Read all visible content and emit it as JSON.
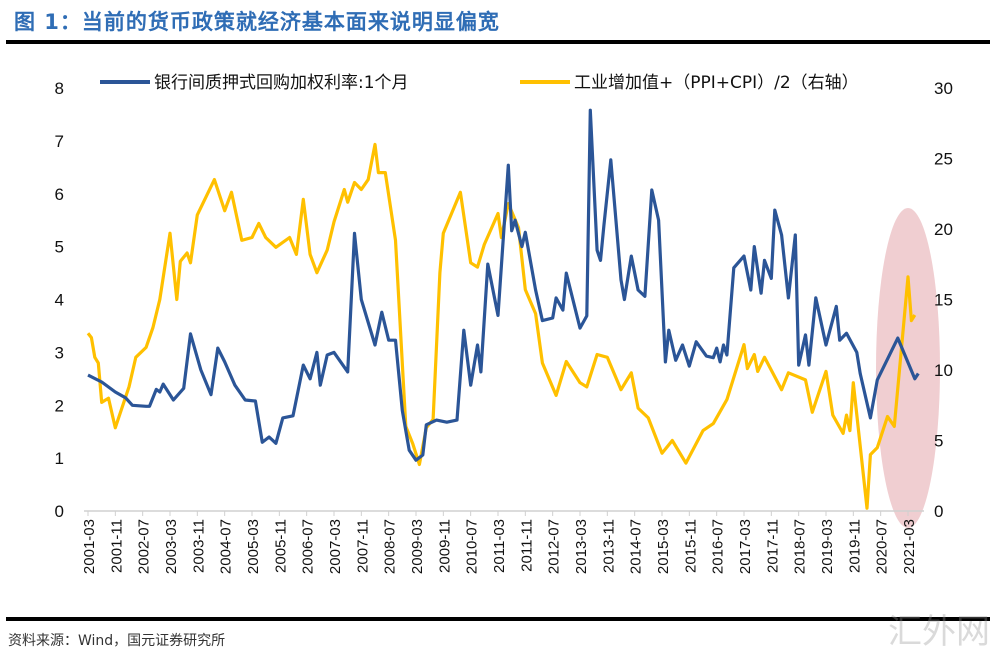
{
  "title": "图 1：当前的货币政策就经济基本面来说明显偏宽",
  "source": "资料来源：Wind，国元证券研究所",
  "watermark": "汇外网",
  "chart_data": {
    "type": "line",
    "title": "",
    "xlabel": "",
    "ylabel_left": "",
    "ylabel_right": "",
    "grid": false,
    "legend_position": "top",
    "y_left": {
      "range": [
        0,
        8
      ],
      "ticks": [
        "0",
        "1",
        "2",
        "3",
        "4",
        "5",
        "6",
        "7",
        "8"
      ]
    },
    "y_right": {
      "range": [
        0,
        30
      ],
      "ticks": [
        "0",
        "5",
        "10",
        "15",
        "20",
        "25",
        "30"
      ]
    },
    "x_ticks": [
      "2001-03",
      "2001-11",
      "2002-07",
      "2003-03",
      "2003-11",
      "2004-07",
      "2005-03",
      "2005-11",
      "2006-07",
      "2007-03",
      "2007-11",
      "2008-07",
      "2009-03",
      "2009-11",
      "2010-07",
      "2011-03",
      "2011-11",
      "2012-07",
      "2013-03",
      "2013-11",
      "2014-07",
      "2015-03",
      "2015-11",
      "2016-07",
      "2017-03",
      "2017-11",
      "2018-07",
      "2019-03",
      "2019-11",
      "2020-07",
      "2021-03"
    ],
    "highlight": {
      "shape": "ellipse",
      "color": "#e8b4b8",
      "around": "2020-07 to 2021-05"
    },
    "series": [
      {
        "name": "银行间质押式回购加权利率:1个月",
        "axis": "left",
        "color": "#2b5597",
        "points": [
          [
            "2001-03",
            2.57
          ],
          [
            "2001-07",
            2.44
          ],
          [
            "2001-11",
            2.25
          ],
          [
            "2002-02",
            2.14
          ],
          [
            "2002-04",
            2.0
          ],
          [
            "2002-08",
            1.98
          ],
          [
            "2002-09",
            1.98
          ],
          [
            "2002-11",
            2.3
          ],
          [
            "2002-12",
            2.25
          ],
          [
            "2003-01",
            2.4
          ],
          [
            "2003-04",
            2.1
          ],
          [
            "2003-07",
            2.32
          ],
          [
            "2003-09",
            3.35
          ],
          [
            "2003-12",
            2.67
          ],
          [
            "2004-03",
            2.2
          ],
          [
            "2004-05",
            3.08
          ],
          [
            "2004-07",
            2.82
          ],
          [
            "2004-10",
            2.38
          ],
          [
            "2005-01",
            2.1
          ],
          [
            "2005-04",
            2.08
          ],
          [
            "2005-06",
            1.3
          ],
          [
            "2005-08",
            1.4
          ],
          [
            "2005-10",
            1.28
          ],
          [
            "2005-12",
            1.76
          ],
          [
            "2006-03",
            1.8
          ],
          [
            "2006-06",
            2.76
          ],
          [
            "2006-08",
            2.5
          ],
          [
            "2006-10",
            3.0
          ],
          [
            "2006-11",
            2.38
          ],
          [
            "2007-01",
            2.95
          ],
          [
            "2007-03",
            3.0
          ],
          [
            "2007-07",
            2.63
          ],
          [
            "2007-09",
            5.25
          ],
          [
            "2007-11",
            4.0
          ],
          [
            "2008-03",
            3.14
          ],
          [
            "2008-05",
            3.76
          ],
          [
            "2008-07",
            3.23
          ],
          [
            "2008-09",
            3.23
          ],
          [
            "2008-11",
            1.9
          ],
          [
            "2009-01",
            1.15
          ],
          [
            "2009-03",
            0.96
          ],
          [
            "2009-05",
            1.06
          ],
          [
            "2009-06",
            1.63
          ],
          [
            "2009-09",
            1.72
          ],
          [
            "2009-12",
            1.68
          ],
          [
            "2010-03",
            1.72
          ],
          [
            "2010-05",
            3.42
          ],
          [
            "2010-07",
            2.38
          ],
          [
            "2010-09",
            3.14
          ],
          [
            "2010-10",
            2.63
          ],
          [
            "2010-12",
            4.67
          ],
          [
            "2011-03",
            3.7
          ],
          [
            "2011-06",
            6.54
          ],
          [
            "2011-07",
            5.3
          ],
          [
            "2011-08",
            5.5
          ],
          [
            "2011-10",
            5.0
          ],
          [
            "2011-11",
            5.27
          ],
          [
            "2012-02",
            4.18
          ],
          [
            "2012-04",
            3.6
          ],
          [
            "2012-07",
            3.65
          ],
          [
            "2012-08",
            4.03
          ],
          [
            "2012-10",
            3.8
          ],
          [
            "2012-11",
            4.5
          ],
          [
            "2013-03",
            3.46
          ],
          [
            "2013-05",
            3.69
          ],
          [
            "2013-06",
            7.58
          ],
          [
            "2013-08",
            4.93
          ],
          [
            "2013-09",
            4.74
          ],
          [
            "2013-10",
            5.4
          ],
          [
            "2013-12",
            6.64
          ],
          [
            "2014-03",
            4.37
          ],
          [
            "2014-04",
            4.0
          ],
          [
            "2014-06",
            4.82
          ],
          [
            "2014-08",
            4.18
          ],
          [
            "2014-10",
            4.06
          ],
          [
            "2014-12",
            6.07
          ],
          [
            "2015-02",
            5.5
          ],
          [
            "2015-04",
            2.82
          ],
          [
            "2015-05",
            3.42
          ],
          [
            "2015-07",
            2.85
          ],
          [
            "2015-09",
            3.14
          ],
          [
            "2015-11",
            2.74
          ],
          [
            "2016-01",
            3.2
          ],
          [
            "2016-04",
            2.93
          ],
          [
            "2016-06",
            2.9
          ],
          [
            "2016-07",
            3.08
          ],
          [
            "2016-08",
            2.82
          ],
          [
            "2016-09",
            3.14
          ],
          [
            "2016-10",
            2.95
          ],
          [
            "2016-12",
            4.6
          ],
          [
            "2017-03",
            4.82
          ],
          [
            "2017-05",
            4.18
          ],
          [
            "2017-06",
            5.0
          ],
          [
            "2017-08",
            4.12
          ],
          [
            "2017-09",
            4.74
          ],
          [
            "2017-11",
            4.4
          ],
          [
            "2017-12",
            5.69
          ],
          [
            "2018-02",
            5.22
          ],
          [
            "2018-04",
            4.03
          ],
          [
            "2018-06",
            5.22
          ],
          [
            "2018-07",
            2.76
          ],
          [
            "2018-09",
            3.33
          ],
          [
            "2018-10",
            2.76
          ],
          [
            "2018-12",
            4.03
          ],
          [
            "2019-03",
            3.14
          ],
          [
            "2019-06",
            3.87
          ],
          [
            "2019-07",
            3.23
          ],
          [
            "2019-09",
            3.36
          ],
          [
            "2019-12",
            3.0
          ],
          [
            "2020-01",
            2.6
          ],
          [
            "2020-04",
            1.76
          ],
          [
            "2020-06",
            2.48
          ],
          [
            "2020-12",
            3.27
          ],
          [
            "2021-05",
            2.5
          ],
          [
            "2021-06",
            2.6
          ]
        ]
      },
      {
        "name": "工业增加值+（PPI+CPI）/2（右轴）",
        "axis": "right",
        "color": "#ffc000",
        "points": [
          [
            "2001-03",
            12.6
          ],
          [
            "2001-04",
            12.3
          ],
          [
            "2001-05",
            10.9
          ],
          [
            "2001-06",
            10.5
          ],
          [
            "2001-07",
            7.7
          ],
          [
            "2001-09",
            8.0
          ],
          [
            "2001-11",
            5.9
          ],
          [
            "2002-03",
            8.8
          ],
          [
            "2002-05",
            10.9
          ],
          [
            "2002-08",
            11.6
          ],
          [
            "2002-10",
            13.0
          ],
          [
            "2002-12",
            15.0
          ],
          [
            "2003-03",
            19.7
          ],
          [
            "2003-05",
            15.0
          ],
          [
            "2003-06",
            17.7
          ],
          [
            "2003-08",
            18.3
          ],
          [
            "2003-09",
            17.6
          ],
          [
            "2003-11",
            21.0
          ],
          [
            "2004-04",
            23.5
          ],
          [
            "2004-07",
            21.3
          ],
          [
            "2004-09",
            22.6
          ],
          [
            "2004-12",
            19.2
          ],
          [
            "2005-03",
            19.4
          ],
          [
            "2005-05",
            20.4
          ],
          [
            "2005-07",
            19.4
          ],
          [
            "2005-10",
            18.7
          ],
          [
            "2006-02",
            19.4
          ],
          [
            "2006-04",
            18.2
          ],
          [
            "2006-06",
            22.1
          ],
          [
            "2006-08",
            18.2
          ],
          [
            "2006-10",
            16.9
          ],
          [
            "2007-01",
            18.5
          ],
          [
            "2007-03",
            20.5
          ],
          [
            "2007-06",
            22.8
          ],
          [
            "2007-07",
            21.9
          ],
          [
            "2007-09",
            23.3
          ],
          [
            "2007-11",
            22.8
          ],
          [
            "2008-01",
            23.5
          ],
          [
            "2008-03",
            26.0
          ],
          [
            "2008-04",
            24.0
          ],
          [
            "2008-06",
            24.0
          ],
          [
            "2008-09",
            19.2
          ],
          [
            "2008-12",
            6.0
          ],
          [
            "2009-02",
            4.8
          ],
          [
            "2009-04",
            3.3
          ],
          [
            "2009-06",
            5.9
          ],
          [
            "2009-08",
            6.5
          ],
          [
            "2009-10",
            16.9
          ],
          [
            "2009-11",
            19.7
          ],
          [
            "2010-04",
            22.6
          ],
          [
            "2010-07",
            17.6
          ],
          [
            "2010-09",
            17.3
          ],
          [
            "2010-11",
            18.9
          ],
          [
            "2011-03",
            21.1
          ],
          [
            "2011-04",
            19.4
          ],
          [
            "2011-06",
            21.8
          ],
          [
            "2011-09",
            20.1
          ],
          [
            "2011-11",
            15.7
          ],
          [
            "2012-02",
            14.0
          ],
          [
            "2012-04",
            10.5
          ],
          [
            "2012-08",
            8.2
          ],
          [
            "2012-11",
            10.6
          ],
          [
            "2013-03",
            9.1
          ],
          [
            "2013-05",
            8.8
          ],
          [
            "2013-08",
            11.1
          ],
          [
            "2013-11",
            10.9
          ],
          [
            "2014-03",
            8.6
          ],
          [
            "2014-06",
            9.8
          ],
          [
            "2014-08",
            7.3
          ],
          [
            "2014-11",
            6.6
          ],
          [
            "2015-03",
            4.1
          ],
          [
            "2015-06",
            5.0
          ],
          [
            "2015-10",
            3.4
          ],
          [
            "2016-03",
            5.7
          ],
          [
            "2016-06",
            6.2
          ],
          [
            "2016-10",
            7.9
          ],
          [
            "2017-03",
            11.8
          ],
          [
            "2017-04",
            10.1
          ],
          [
            "2017-06",
            11.1
          ],
          [
            "2017-07",
            9.9
          ],
          [
            "2017-09",
            10.9
          ],
          [
            "2018-02",
            8.6
          ],
          [
            "2018-04",
            9.8
          ],
          [
            "2018-09",
            9.3
          ],
          [
            "2018-11",
            7.0
          ],
          [
            "2019-03",
            9.9
          ],
          [
            "2019-05",
            6.8
          ],
          [
            "2019-08",
            5.5
          ],
          [
            "2019-09",
            6.8
          ],
          [
            "2019-10",
            5.7
          ],
          [
            "2019-11",
            9.1
          ],
          [
            "2020-03",
            0.2
          ],
          [
            "2020-04",
            4.0
          ],
          [
            "2020-06",
            4.5
          ],
          [
            "2020-09",
            6.7
          ],
          [
            "2020-11",
            6.0
          ],
          [
            "2021-03",
            16.6
          ],
          [
            "2021-04",
            13.5
          ],
          [
            "2021-05",
            13.9
          ]
        ]
      }
    ]
  }
}
